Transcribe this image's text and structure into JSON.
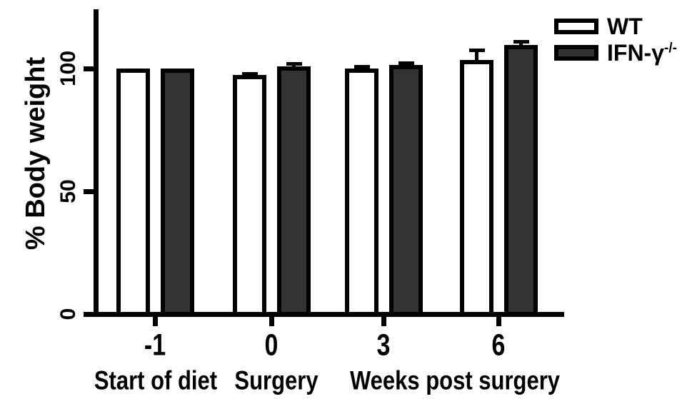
{
  "chart_data": {
    "type": "bar",
    "title": "",
    "ylabel": "% Body weight",
    "xlabel": "",
    "categories": [
      "-1",
      "0",
      "3",
      "6"
    ],
    "series": [
      {
        "name": "WT",
        "fill": "#ffffff",
        "values": [
          100,
          97.5,
          100,
          103.5
        ],
        "errors": [
          0,
          1,
          1.5,
          4.5
        ]
      },
      {
        "name": "IFN-γ-/-",
        "fill": "#333333",
        "values": [
          100,
          101,
          101.5,
          109.5
        ],
        "errors": [
          0,
          1.5,
          1.5,
          2
        ]
      }
    ],
    "y_ticks": [
      0,
      50,
      100
    ],
    "ylim": [
      0,
      124
    ],
    "x_axis_captions": [
      "Start of diet",
      "Surgery",
      "Weeks post surgery"
    ],
    "legend_position": "top-right",
    "grid": false,
    "bar_border_color": "#000000",
    "axis_color": "#000000",
    "background": "#ffffff",
    "error_bar_direction": "upper"
  },
  "legend": {
    "items": [
      {
        "label": "WT",
        "sup": ""
      },
      {
        "label": "IFN-γ",
        "sup": "-/-"
      }
    ]
  }
}
